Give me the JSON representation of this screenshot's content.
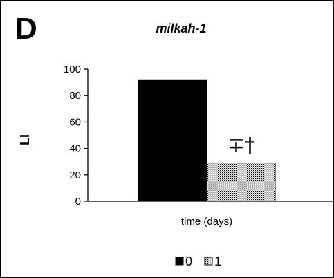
{
  "panel_label": "D",
  "chart_data": {
    "type": "bar",
    "title": "milkah-1",
    "xlabel": "time (days)",
    "ylabel": "LI",
    "ylim": [
      0,
      100
    ],
    "yticks": [
      0,
      20,
      40,
      60,
      80,
      100
    ],
    "ytick_labels": [
      "0",
      "20",
      "40",
      "60",
      "80",
      "100"
    ],
    "series": [
      {
        "name": "0",
        "values": [
          92
        ],
        "color": "#000000",
        "pattern": "solid"
      },
      {
        "name": "1",
        "values": [
          29
        ],
        "color": "#ffffff",
        "pattern": "dotted"
      }
    ],
    "annotations": [
      {
        "text": "∓†",
        "series": "1"
      }
    ],
    "legend_position": "bottom",
    "grid": false
  }
}
